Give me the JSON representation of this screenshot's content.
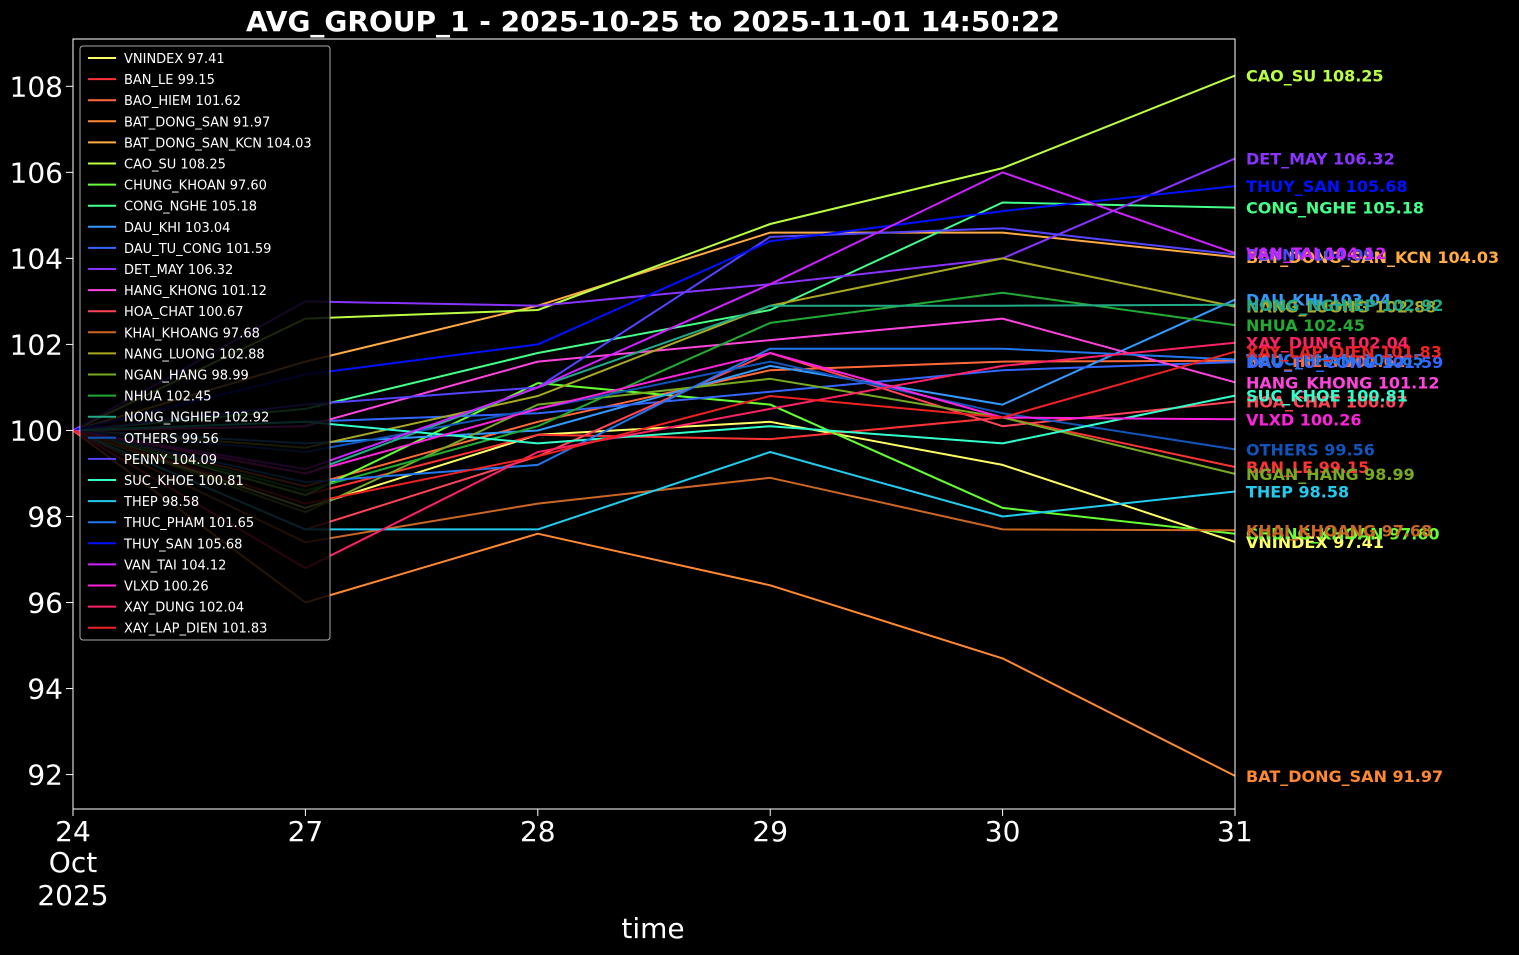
{
  "chart_data": {
    "type": "line",
    "title": "AVG_GROUP_1 - 2025-10-25 to 2025-11-01 14:50:22",
    "xlabel": "time",
    "ylabel": "",
    "x": [
      0,
      1,
      2,
      3,
      4,
      5
    ],
    "x_ticks": [
      {
        "label": "24",
        "sub1": "Oct",
        "sub2": "2025"
      },
      {
        "label": "27"
      },
      {
        "label": "28"
      },
      {
        "label": "29"
      },
      {
        "label": "30"
      },
      {
        "label": "31"
      }
    ],
    "ylim": [
      91.2,
      109.1
    ],
    "y_ticks": [
      92,
      94,
      96,
      98,
      100,
      102,
      104,
      106,
      108
    ],
    "legend_position": "top-left",
    "grid": false,
    "series": [
      {
        "name": "VNINDEX",
        "last": "97.41",
        "color": "#ffff66",
        "values": [
          100,
          98.2,
          99.9,
          100.2,
          99.2,
          97.41
        ]
      },
      {
        "name": "BAN_LE",
        "last": "99.15",
        "color": "#ff3333",
        "values": [
          100,
          98.5,
          99.9,
          99.8,
          100.3,
          99.15
        ]
      },
      {
        "name": "BAO_HIEM",
        "last": "101.62",
        "color": "#ff6a3a",
        "values": [
          100,
          98.7,
          100.2,
          101.4,
          101.6,
          101.62
        ]
      },
      {
        "name": "BAT_DONG_SAN",
        "last": "91.97",
        "color": "#ff8833",
        "values": [
          100,
          96.0,
          97.6,
          96.4,
          94.7,
          91.97
        ]
      },
      {
        "name": "BAT_DONG_SAN_KCN",
        "last": "104.03",
        "color": "#ffaa44",
        "values": [
          100,
          101.6,
          102.9,
          104.6,
          104.6,
          104.03
        ]
      },
      {
        "name": "CAO_SU",
        "last": "108.25",
        "color": "#bbff44",
        "values": [
          100,
          102.6,
          102.8,
          104.8,
          106.1,
          108.25
        ]
      },
      {
        "name": "CHUNG_KHOAN",
        "last": "97.60",
        "color": "#66ff33",
        "values": [
          100,
          98.5,
          101.1,
          100.6,
          98.2,
          97.6
        ]
      },
      {
        "name": "CONG_NGHE",
        "last": "105.18",
        "color": "#44ff88",
        "values": [
          100,
          100.5,
          101.8,
          102.8,
          105.3,
          105.18
        ]
      },
      {
        "name": "DAU_KHI",
        "last": "103.04",
        "color": "#3399ff",
        "values": [
          100,
          99.7,
          100.0,
          101.5,
          100.6,
          103.04
        ]
      },
      {
        "name": "DAU_TU_CONG",
        "last": "101.59",
        "color": "#3366ff",
        "values": [
          100,
          100.2,
          100.4,
          100.9,
          101.4,
          101.59
        ]
      },
      {
        "name": "DET_MAY",
        "last": "106.32",
        "color": "#8833ff",
        "values": [
          100,
          103.0,
          102.9,
          103.4,
          104.0,
          106.32
        ]
      },
      {
        "name": "HANG_KHONG",
        "last": "101.12",
        "color": "#ff44dd",
        "values": [
          100,
          100.1,
          101.6,
          102.1,
          102.6,
          101.12
        ]
      },
      {
        "name": "HOA_CHAT",
        "last": "100.67",
        "color": "#ff4455",
        "values": [
          100,
          97.7,
          99.4,
          101.8,
          100.1,
          100.67
        ]
      },
      {
        "name": "KHAI_KHOANG",
        "last": "97.68",
        "color": "#cc6622",
        "values": [
          100,
          97.4,
          98.3,
          98.9,
          97.7,
          97.68
        ]
      },
      {
        "name": "NANG_LUONG",
        "last": "102.88",
        "color": "#aaaa22",
        "values": [
          100,
          99.6,
          100.8,
          102.9,
          104.0,
          102.88
        ]
      },
      {
        "name": "NGAN_HANG",
        "last": "98.99",
        "color": "#77aa22",
        "values": [
          100,
          98.1,
          100.6,
          101.2,
          100.3,
          98.99
        ]
      },
      {
        "name": "NHUA",
        "last": "102.45",
        "color": "#22aa33",
        "values": [
          100,
          98.6,
          100.1,
          102.5,
          103.2,
          102.45
        ]
      },
      {
        "name": "NONG_NGHIEP",
        "last": "102.92",
        "color": "#22aa88",
        "values": [
          100,
          99.0,
          101.0,
          102.9,
          102.9,
          102.92
        ]
      },
      {
        "name": "OTHERS",
        "last": "99.56",
        "color": "#1155bb",
        "values": [
          100,
          99.5,
          100.5,
          101.6,
          100.4,
          99.56
        ]
      },
      {
        "name": "PENNY",
        "last": "104.09",
        "color": "#5544ff",
        "values": [
          100,
          100.6,
          101.0,
          104.5,
          104.7,
          104.09
        ]
      },
      {
        "name": "SUC_KHOE",
        "last": "100.81",
        "color": "#33ffcc",
        "values": [
          100,
          100.2,
          99.7,
          100.1,
          99.7,
          100.81
        ]
      },
      {
        "name": "THEP",
        "last": "98.58",
        "color": "#22ccee",
        "values": [
          100,
          97.7,
          97.7,
          99.5,
          98.0,
          98.58
        ]
      },
      {
        "name": "THUC_PHAM",
        "last": "101.65",
        "color": "#2277ee",
        "values": [
          100,
          98.8,
          99.2,
          101.9,
          101.9,
          101.65
        ]
      },
      {
        "name": "THUY_SAN",
        "last": "105.68",
        "color": "#0011ff",
        "values": [
          100,
          101.3,
          102.0,
          104.4,
          105.1,
          105.68
        ]
      },
      {
        "name": "VAN_TAI",
        "last": "104.12",
        "color": "#cc22ff",
        "values": [
          100,
          99.1,
          101.0,
          103.4,
          106.0,
          104.12
        ]
      },
      {
        "name": "VLXD",
        "last": "100.26",
        "color": "#ff22dd",
        "values": [
          100,
          99.0,
          100.5,
          101.8,
          100.3,
          100.26
        ]
      },
      {
        "name": "XAY_DUNG",
        "last": "102.04",
        "color": "#ff2266",
        "values": [
          100,
          96.8,
          99.5,
          100.5,
          101.5,
          102.04
        ]
      },
      {
        "name": "XAY_LAP_DIEN",
        "last": "101.83",
        "color": "#ee2222",
        "values": [
          100,
          98.3,
          99.4,
          100.8,
          100.3,
          101.83
        ]
      }
    ]
  }
}
